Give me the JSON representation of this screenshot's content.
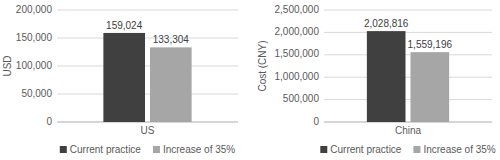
{
  "chart_data": [
    {
      "type": "bar",
      "y_label": "USD",
      "categories": [
        "US"
      ],
      "series": [
        {
          "name": "Current practice",
          "color": "#404040",
          "values": [
            159024
          ],
          "value_labels": [
            "159,024"
          ]
        },
        {
          "name": "Increase of 35%",
          "color": "#a6a6a6",
          "values": [
            133304
          ],
          "value_labels": [
            "133,304"
          ]
        }
      ],
      "ylim": [
        0,
        200000
      ],
      "yticks": [
        0,
        {
          "value": 50000,
          "label": "50,000"
        },
        {
          "value": 100000,
          "label": "100,000"
        },
        {
          "value": 150000,
          "label": "150,000"
        },
        {
          "value": 200000,
          "label": "200,000"
        }
      ],
      "grid": true,
      "data_labels": true,
      "legend": "bottom"
    },
    {
      "type": "bar",
      "y_label": "Cost (CNY)",
      "categories": [
        "China"
      ],
      "series": [
        {
          "name": "Current practice",
          "color": "#404040",
          "values": [
            2028816
          ],
          "value_labels": [
            "2,028,816"
          ]
        },
        {
          "name": "Increase of 35%",
          "color": "#a6a6a6",
          "values": [
            1559196
          ],
          "value_labels": [
            "1,559,196"
          ]
        }
      ],
      "ylim": [
        0,
        2500000
      ],
      "yticks": [
        0,
        {
          "value": 500000,
          "label": "500,000"
        },
        {
          "value": 1000000,
          "label": "1,000,000"
        },
        {
          "value": 1500000,
          "label": "1,500,000"
        },
        {
          "value": 2000000,
          "label": "2,000,000"
        },
        {
          "value": 2500000,
          "label": "2,500,000"
        }
      ],
      "grid": true,
      "data_labels": true,
      "legend": "bottom"
    }
  ]
}
